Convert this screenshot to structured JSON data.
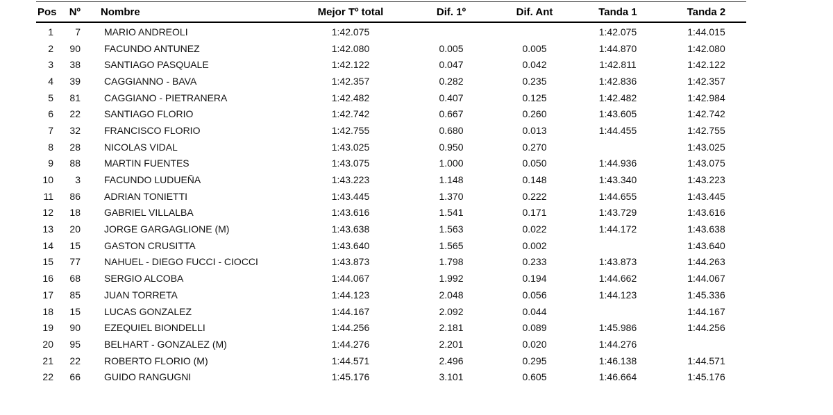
{
  "colors": {
    "background": "#ffffff",
    "text": "#121212",
    "header_text": "#000000",
    "rule_line": "#000000",
    "top_line": "#3c3c3c"
  },
  "table": {
    "columns": [
      {
        "key": "pos",
        "label": "Pos"
      },
      {
        "key": "num",
        "label": "Nº"
      },
      {
        "key": "name",
        "label": "Nombre"
      },
      {
        "key": "best",
        "label": "Mejor Tº total"
      },
      {
        "key": "dif1",
        "label": "Dif. 1º"
      },
      {
        "key": "difant",
        "label": "Dif. Ant"
      },
      {
        "key": "t1",
        "label": "Tanda 1"
      },
      {
        "key": "t2",
        "label": "Tanda 2"
      }
    ],
    "rows": [
      {
        "pos": "1",
        "num": "7",
        "name": "MARIO ANDREOLI",
        "best": "1:42.075",
        "dif1": "",
        "difant": "",
        "t1": "1:42.075",
        "t2": "1:44.015"
      },
      {
        "pos": "2",
        "num": "90",
        "name": "FACUNDO ANTUNEZ",
        "best": "1:42.080",
        "dif1": "0.005",
        "difant": "0.005",
        "t1": "1:44.870",
        "t2": "1:42.080"
      },
      {
        "pos": "3",
        "num": "38",
        "name": "SANTIAGO PASQUALE",
        "best": "1:42.122",
        "dif1": "0.047",
        "difant": "0.042",
        "t1": "1:42.811",
        "t2": "1:42.122"
      },
      {
        "pos": "4",
        "num": "39",
        "name": "CAGGIANNO - BAVA",
        "best": "1:42.357",
        "dif1": "0.282",
        "difant": "0.235",
        "t1": "1:42.836",
        "t2": "1:42.357"
      },
      {
        "pos": "5",
        "num": "81",
        "name": "CAGGIANO - PIETRANERA",
        "best": "1:42.482",
        "dif1": "0.407",
        "difant": "0.125",
        "t1": "1:42.482",
        "t2": "1:42.984"
      },
      {
        "pos": "6",
        "num": "22",
        "name": "SANTIAGO FLORIO",
        "best": "1:42.742",
        "dif1": "0.667",
        "difant": "0.260",
        "t1": "1:43.605",
        "t2": "1:42.742"
      },
      {
        "pos": "7",
        "num": "32",
        "name": "FRANCISCO FLORIO",
        "best": "1:42.755",
        "dif1": "0.680",
        "difant": "0.013",
        "t1": "1:44.455",
        "t2": "1:42.755"
      },
      {
        "pos": "8",
        "num": "28",
        "name": "NICOLAS VIDAL",
        "best": "1:43.025",
        "dif1": "0.950",
        "difant": "0.270",
        "t1": "",
        "t2": "1:43.025"
      },
      {
        "pos": "9",
        "num": "88",
        "name": "MARTIN FUENTES",
        "best": "1:43.075",
        "dif1": "1.000",
        "difant": "0.050",
        "t1": "1:44.936",
        "t2": "1:43.075"
      },
      {
        "pos": "10",
        "num": "3",
        "name": "FACUNDO LUDUEÑA",
        "best": "1:43.223",
        "dif1": "1.148",
        "difant": "0.148",
        "t1": "1:43.340",
        "t2": "1:43.223"
      },
      {
        "pos": "11",
        "num": "86",
        "name": "ADRIAN TONIETTI",
        "best": "1:43.445",
        "dif1": "1.370",
        "difant": "0.222",
        "t1": "1:44.655",
        "t2": "1:43.445"
      },
      {
        "pos": "12",
        "num": "18",
        "name": "GABRIEL VILLALBA",
        "best": "1:43.616",
        "dif1": "1.541",
        "difant": "0.171",
        "t1": "1:43.729",
        "t2": "1:43.616"
      },
      {
        "pos": "13",
        "num": "20",
        "name": "JORGE GARGAGLIONE (M)",
        "best": "1:43.638",
        "dif1": "1.563",
        "difant": "0.022",
        "t1": "1:44.172",
        "t2": "1:43.638"
      },
      {
        "pos": "14",
        "num": "15",
        "name": "GASTON CRUSITTA",
        "best": "1:43.640",
        "dif1": "1.565",
        "difant": "0.002",
        "t1": "",
        "t2": "1:43.640"
      },
      {
        "pos": "15",
        "num": "77",
        "name": "NAHUEL - DIEGO FUCCI - CIOCCI",
        "best": "1:43.873",
        "dif1": "1.798",
        "difant": "0.233",
        "t1": "1:43.873",
        "t2": "1:44.263"
      },
      {
        "pos": "16",
        "num": "68",
        "name": "SERGIO ALCOBA",
        "best": "1:44.067",
        "dif1": "1.992",
        "difant": "0.194",
        "t1": "1:44.662",
        "t2": "1:44.067"
      },
      {
        "pos": "17",
        "num": "85",
        "name": "JUAN TORRETA",
        "best": "1:44.123",
        "dif1": "2.048",
        "difant": "0.056",
        "t1": "1:44.123",
        "t2": "1:45.336"
      },
      {
        "pos": "18",
        "num": "15",
        "name": "LUCAS GONZALEZ",
        "best": "1:44.167",
        "dif1": "2.092",
        "difant": "0.044",
        "t1": "",
        "t2": "1:44.167"
      },
      {
        "pos": "19",
        "num": "90",
        "name": "EZEQUIEL BIONDELLI",
        "best": "1:44.256",
        "dif1": "2.181",
        "difant": "0.089",
        "t1": "1:45.986",
        "t2": "1:44.256"
      },
      {
        "pos": "20",
        "num": "95",
        "name": "BELHART - GONZALEZ (M)",
        "best": "1:44.276",
        "dif1": "2.201",
        "difant": "0.020",
        "t1": "1:44.276",
        "t2": ""
      },
      {
        "pos": "21",
        "num": "22",
        "name": "ROBERTO FLORIO (M)",
        "best": "1:44.571",
        "dif1": "2.496",
        "difant": "0.295",
        "t1": "1:46.138",
        "t2": "1:44.571"
      },
      {
        "pos": "22",
        "num": "66",
        "name": "GUIDO RANGUGNI",
        "best": "1:45.176",
        "dif1": "3.101",
        "difant": "0.605",
        "t1": "1:46.664",
        "t2": "1:45.176"
      }
    ]
  }
}
